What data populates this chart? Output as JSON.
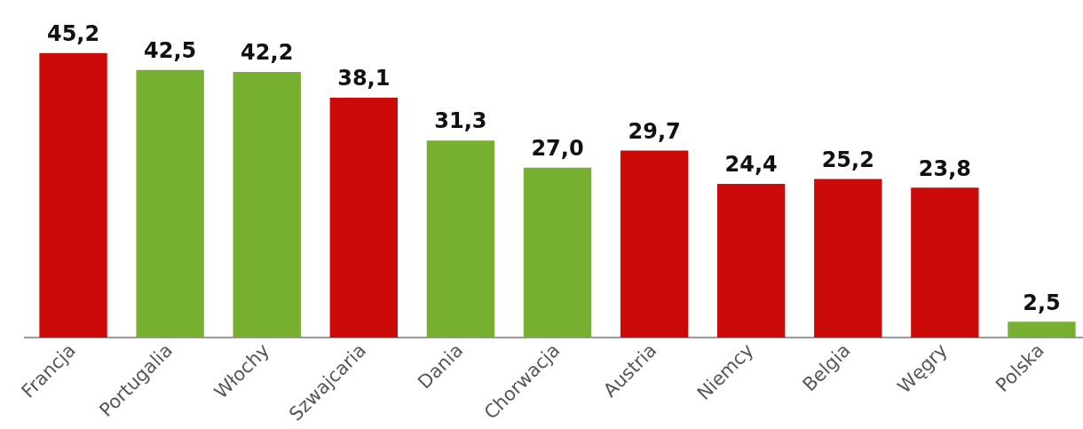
{
  "chart_data": {
    "type": "bar",
    "categories": [
      "Francja",
      "Portugalia",
      "Włochy",
      "Szwajcaria",
      "Dania",
      "Chorwacja",
      "Austria",
      "Niemcy",
      "Belgia",
      "Węgry",
      "Polska"
    ],
    "values": [
      45.2,
      42.5,
      42.2,
      38.1,
      31.3,
      27.0,
      29.7,
      24.4,
      25.2,
      23.8,
      2.5
    ],
    "colors": [
      "#cc0a0a",
      "#77b031",
      "#77b031",
      "#cc0a0a",
      "#77b031",
      "#77b031",
      "#cc0a0a",
      "#cc0a0a",
      "#cc0a0a",
      "#cc0a0a",
      "#77b031"
    ],
    "value_labels": [
      "45,2",
      "42,5",
      "42,2",
      "38,1",
      "31,3",
      "27,0",
      "29,7",
      "24,4",
      "25,2",
      "23,8",
      "2,5"
    ],
    "grid": false,
    "legend": false
  }
}
